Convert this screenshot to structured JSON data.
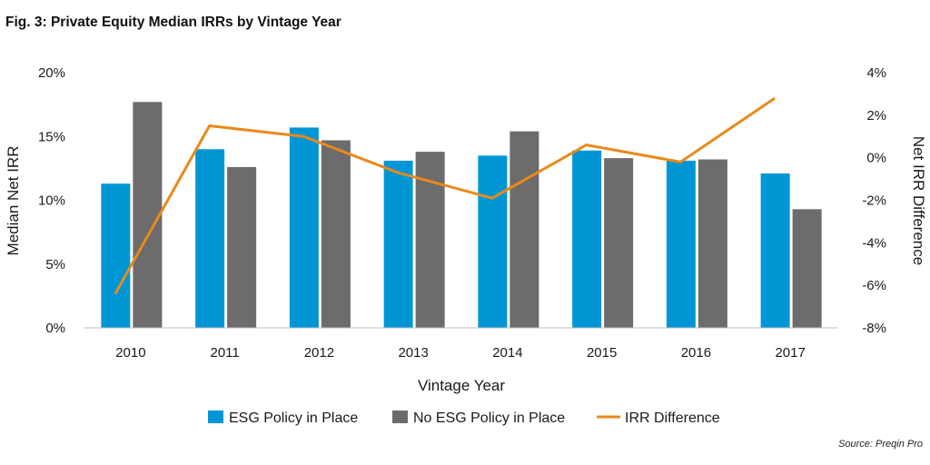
{
  "title": "Fig. 3: Private Equity Median IRRs by Vintage Year",
  "source": "Source: Preqin Pro",
  "colors": {
    "esg": "#0096d6",
    "no_esg": "#6d6b6b",
    "diff": "#e88a1a"
  },
  "chart_data": {
    "type": "bar",
    "title": "Fig. 3: Private Equity Median IRRs by Vintage Year",
    "xlabel": "Vintage Year",
    "ylabel": "Median Net IRR",
    "y2label": "Net IRR Difference",
    "categories": [
      "2010",
      "2011",
      "2012",
      "2013",
      "2014",
      "2015",
      "2016",
      "2017"
    ],
    "ylim": [
      0,
      20
    ],
    "yticks": [
      "0%",
      "5%",
      "10%",
      "15%",
      "20%"
    ],
    "y2lim": [
      -8,
      4
    ],
    "y2ticks": [
      "-8%",
      "-6%",
      "-4%",
      "-2%",
      "0%",
      "2%",
      "4%"
    ],
    "series": [
      {
        "name": "ESG Policy in Place",
        "type": "bar",
        "axis": "left",
        "values": [
          11.3,
          14.0,
          15.7,
          13.1,
          13.5,
          13.9,
          13.1,
          12.1
        ]
      },
      {
        "name": "No ESG Policy in Place",
        "type": "bar",
        "axis": "left",
        "values": [
          17.7,
          12.6,
          14.7,
          13.8,
          15.4,
          13.3,
          13.2,
          9.3
        ]
      },
      {
        "name": "IRR Difference",
        "type": "line",
        "axis": "right",
        "values": [
          -6.4,
          1.5,
          1.0,
          -0.7,
          -1.9,
          0.6,
          -0.2,
          2.8
        ]
      }
    ],
    "legend": "bottom"
  }
}
